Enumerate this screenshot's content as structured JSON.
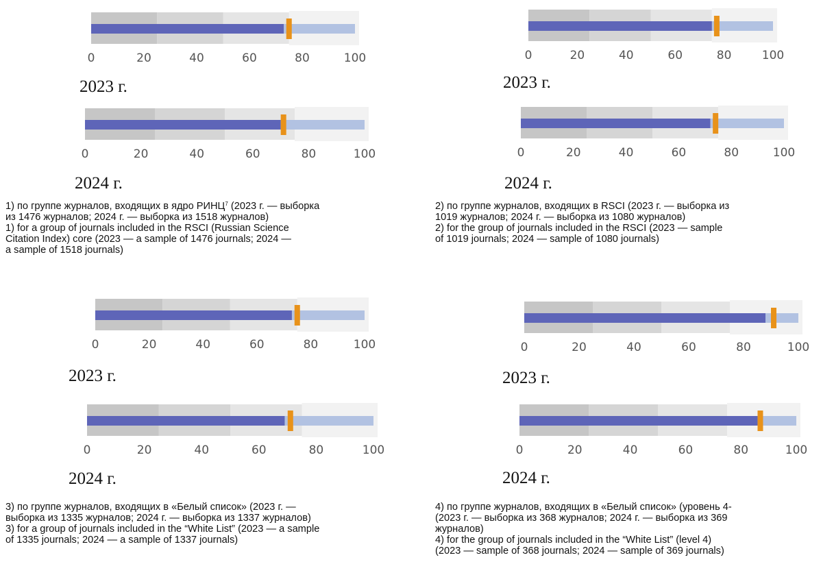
{
  "chart_data": [
    {
      "type": "bullet",
      "panel": 1,
      "year_label": "2023 г.",
      "value": 73,
      "marker": 75,
      "target": 100,
      "bands": [
        25,
        50,
        75
      ],
      "ticks": [
        "0",
        "20",
        "40",
        "60",
        "80",
        "100"
      ],
      "xlim": [
        0,
        100
      ]
    },
    {
      "type": "bullet",
      "panel": 1,
      "year_label": "2024 г.",
      "value": 70,
      "marker": 71,
      "target": 100,
      "bands": [
        25,
        50,
        75
      ],
      "ticks": [
        "0",
        "20",
        "40",
        "60",
        "80",
        "100"
      ],
      "xlim": [
        0,
        100
      ]
    },
    {
      "type": "bullet",
      "panel": 2,
      "year_label": "2023 г.",
      "value": 75,
      "marker": 77,
      "target": 100,
      "bands": [
        25,
        50,
        75
      ],
      "ticks": [
        "0",
        "20",
        "40",
        "60",
        "80",
        "100"
      ],
      "xlim": [
        0,
        100
      ]
    },
    {
      "type": "bullet",
      "panel": 2,
      "year_label": "2024 г.",
      "value": 72,
      "marker": 74,
      "target": 100,
      "bands": [
        25,
        50,
        75
      ],
      "ticks": [
        "0",
        "20",
        "40",
        "60",
        "80",
        "100"
      ],
      "xlim": [
        0,
        100
      ]
    },
    {
      "type": "bullet",
      "panel": 3,
      "year_label": "2023 г.",
      "value": 73,
      "marker": 75,
      "target": 100,
      "bands": [
        25,
        50,
        75
      ],
      "ticks": [
        "0",
        "20",
        "40",
        "60",
        "80",
        "100"
      ],
      "xlim": [
        0,
        100
      ]
    },
    {
      "type": "bullet",
      "panel": 3,
      "year_label": "2024 г.",
      "value": 69,
      "marker": 71,
      "target": 100,
      "bands": [
        25,
        50,
        75
      ],
      "ticks": [
        "0",
        "20",
        "40",
        "60",
        "80",
        "100"
      ],
      "xlim": [
        0,
        100
      ]
    },
    {
      "type": "bullet",
      "panel": 4,
      "year_label": "2023 г.",
      "value": 88,
      "marker": 91,
      "target": 100,
      "bands": [
        25,
        50,
        75
      ],
      "ticks": [
        "0",
        "20",
        "40",
        "60",
        "80",
        "100"
      ],
      "xlim": [
        0,
        100
      ]
    },
    {
      "type": "bullet",
      "panel": 4,
      "year_label": "2024 г.",
      "value": 86,
      "marker": 87,
      "target": 100,
      "bands": [
        25,
        50,
        75
      ],
      "ticks": [
        "0",
        "20",
        "40",
        "60",
        "80",
        "100"
      ],
      "xlim": [
        0,
        100
      ]
    }
  ],
  "colors": {
    "value_bar": "#5e65b8",
    "target_bar": "#b2c2e2",
    "marker": "#e8921a",
    "band_dark": "#c6c6c6",
    "band_mid": "#d5d5d5",
    "band_light": "#e5e5e5",
    "panel_bg": "#f2f2f2"
  },
  "captions": {
    "c1": {
      "ru_line1_pre": "1) по группе журналов, входящих в ядро РИНЦ",
      "ru_line1_sup": "7",
      "ru_line1_post": " (2023 г. — выборка",
      "ru_line2": "из 1476 журналов; 2024 г. — выборка из 1518 журналов)",
      "en_line1": "1) for a group of journals included in the RSCI (Russian Science",
      "en_line2": "Citation Index) core (2023 — a sample of 1476 journals; 2024 —",
      "en_line3": "a sample of 1518 journals)"
    },
    "c2": {
      "ru_line1": "2) по группе журналов, входящих в RSCI (2023 г. — выборка из",
      "ru_line2": "1019 журналов; 2024 г. — выборка из 1080 журналов)",
      "en_line1": "2) for the group of journals included in the RSCI (2023 — sample",
      "en_line2": "of 1019 journals; 2024 — sample of 1080 journals)"
    },
    "c3": {
      "ru_line1": "3) по группе журналов, входящих в «Белый список» (2023 г. —",
      "ru_line2": "выборка из 1335 журналов; 2024 г. — выборка из 1337 журналов)",
      "en_line1": "3) for a group of journals included in the “White List” (2023 — a sample",
      "en_line2": "of 1335 journals; 2024 — a sample of 1337 journals)"
    },
    "c4": {
      "ru_line1": "4) по группе журналов, входящих в «Белый список» (уровень 4-",
      "ru_line2": "(2023 г. — выборка из 368 журналов; 2024 г. — выборка из 369",
      "ru_line3": "журналов)",
      "en_line1": "4) for the group of journals included in the “White List” (level 4)",
      "en_line2": "(2023 — sample of 368 journals; 2024 — sample of 369 journals)"
    }
  }
}
